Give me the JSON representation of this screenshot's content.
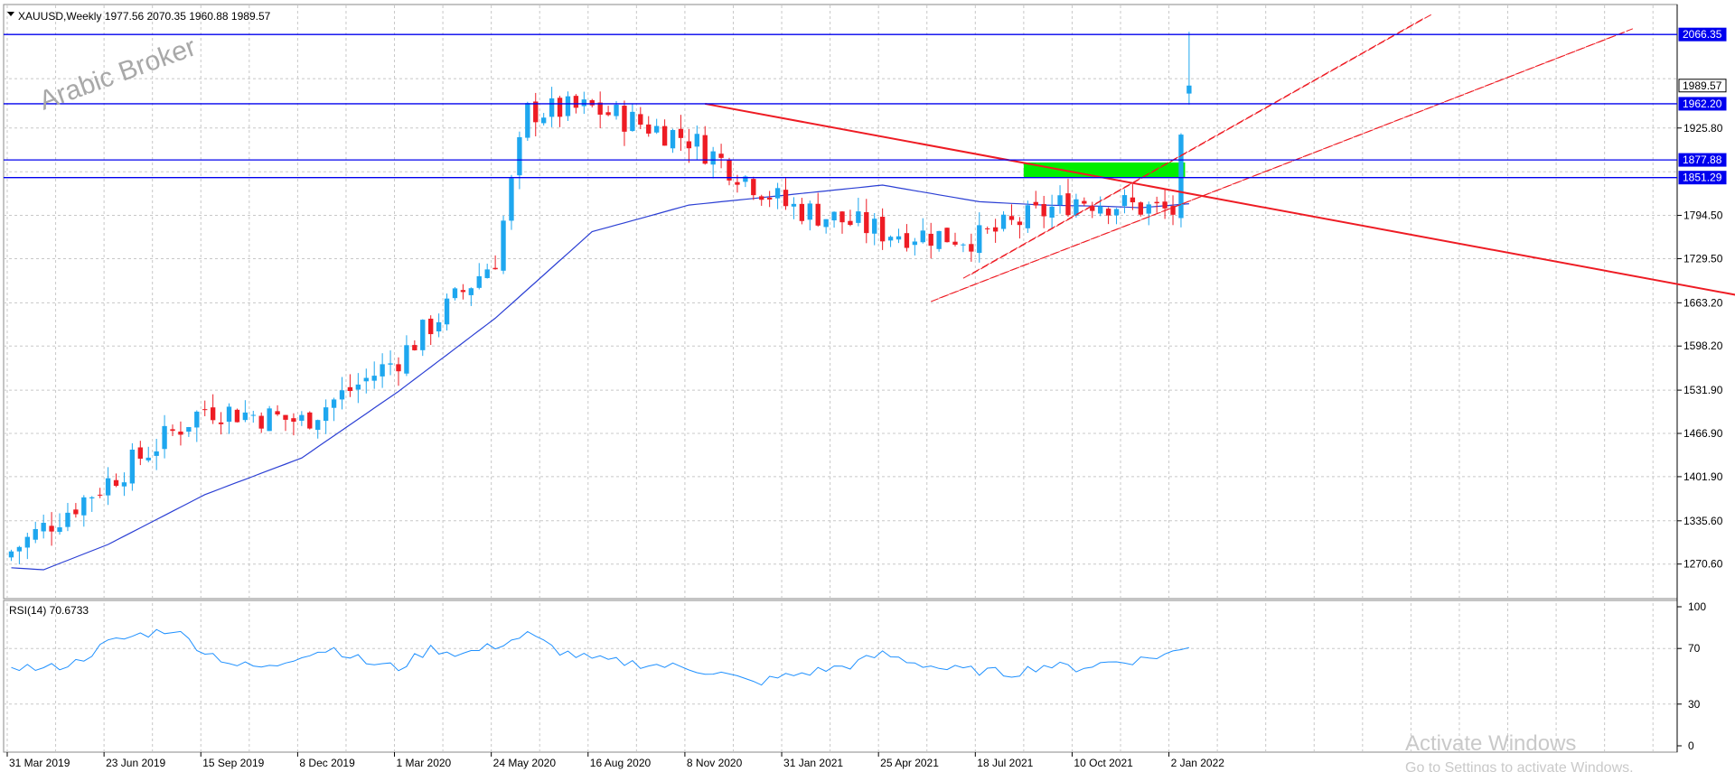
{
  "window": {
    "title": "XAUUSD,Weekly  1977.56 2070.35 1960.88 1989.57",
    "watermark": "Arabic Broker",
    "activate_title": "Activate Windows",
    "activate_sub": "Go to Settings to activate Windows."
  },
  "colors": {
    "bull": "#1ea7ef",
    "bear": "#ee1c24",
    "ma": "#2b3fd4",
    "hline": "#0000ee",
    "trend": "#ee1c24",
    "zone": "#00ee00",
    "rsi": "#1e90ff",
    "grid": "#c8c8c8"
  },
  "chart_data": [
    {
      "type": "candlestick",
      "title": "XAUUSD,Weekly  1977.56 2070.35 1960.88 1989.57",
      "symbol": "XAUUSD",
      "timeframe": "Weekly",
      "last_bar": {
        "open": 1977.56,
        "high": 2070.35,
        "low": 1960.88,
        "close": 1989.57
      },
      "ylim": [
        1220,
        2110
      ],
      "y_ticks": [
        "1270.60",
        "1335.60",
        "1401.90",
        "1466.90",
        "1531.90",
        "1598.20",
        "1663.20",
        "1729.50",
        "1794.50",
        "1925.80"
      ],
      "x_ticks": [
        "31 Mar 2019",
        "23 Jun 2019",
        "15 Sep 2019",
        "8 Dec 2019",
        "1 Mar 2020",
        "24 May 2020",
        "16 Aug 2020",
        "8 Nov 2020",
        "31 Jan 2021",
        "25 Apr 2021",
        "18 Jul 2021",
        "10 Oct 2021",
        "2 Jan 2022"
      ],
      "weeks_per_x_tick": 12,
      "projected_weeks": 60,
      "price_labels": [
        {
          "value": 2066.35,
          "label": "2066.35",
          "style": "hline"
        },
        {
          "value": 1989.57,
          "label": "1989.57",
          "style": "last"
        },
        {
          "value": 1962.2,
          "label": "1962.20",
          "style": "hline"
        },
        {
          "value": 1877.88,
          "label": "1877.88",
          "style": "hline"
        },
        {
          "value": 1851.29,
          "label": "1851.29",
          "style": "hline"
        }
      ],
      "horizontal_lines": [
        2066.35,
        1962.2,
        1877.88,
        1851.29
      ],
      "close_path_weeks": [
        0,
        12,
        24,
        36,
        48,
        60,
        64,
        72,
        84,
        96,
        108,
        120,
        132,
        144,
        146
      ],
      "close_path_values": [
        1290,
        1395,
        1505,
        1485,
        1580,
        1730,
        1950,
        1955,
        1910,
        1810,
        1770,
        1760,
        1820,
        1800,
        1989.57
      ],
      "ma_weeks": [
        0,
        4,
        12,
        24,
        36,
        48,
        60,
        72,
        84,
        96,
        108,
        120,
        128,
        136,
        140,
        146
      ],
      "ma_values": [
        1265,
        1262,
        1300,
        1375,
        1430,
        1530,
        1640,
        1770,
        1810,
        1825,
        1840,
        1815,
        1810,
        1808,
        1806,
        1812
      ],
      "trendline": {
        "from": [
          86,
          1962.2
        ],
        "to": [
          216,
          1670
        ]
      },
      "channel": {
        "lower_a": {
          "from": [
            114,
            1665
          ],
          "to": [
            200,
            2070
          ]
        },
        "lower_b": {
          "from": [
            115,
            1670
          ],
          "to": [
            201,
            2075
          ]
        },
        "upper_a": {
          "from": [
            118,
            1700
          ],
          "to": [
            175,
            2090
          ]
        },
        "upper_b": {
          "from": [
            119,
            1706
          ],
          "to": [
            176,
            2096
          ]
        }
      },
      "zone": {
        "from_week": 126,
        "to_week": 146,
        "top": 1874,
        "bottom": 1852
      }
    },
    {
      "type": "line",
      "title": "RSI(14) 70.6733",
      "ylim": [
        0,
        100
      ],
      "y_ticks": [
        "100",
        "70",
        "30",
        "0"
      ],
      "levels": [
        70,
        30
      ],
      "rsi_weeks": [
        0,
        4,
        8,
        12,
        16,
        20,
        24,
        28,
        32,
        36,
        40,
        44,
        48,
        52,
        56,
        60,
        64,
        68,
        72,
        76,
        80,
        84,
        88,
        92,
        96,
        100,
        104,
        108,
        112,
        116,
        120,
        124,
        128,
        132,
        136,
        140,
        144,
        146
      ],
      "rsi_values": [
        58,
        55,
        60,
        74,
        80,
        84,
        68,
        58,
        56,
        66,
        70,
        60,
        56,
        70,
        66,
        72,
        80,
        68,
        62,
        60,
        58,
        56,
        52,
        45,
        50,
        54,
        58,
        66,
        60,
        55,
        54,
        52,
        58,
        56,
        60,
        62,
        67,
        70.67
      ]
    }
  ]
}
